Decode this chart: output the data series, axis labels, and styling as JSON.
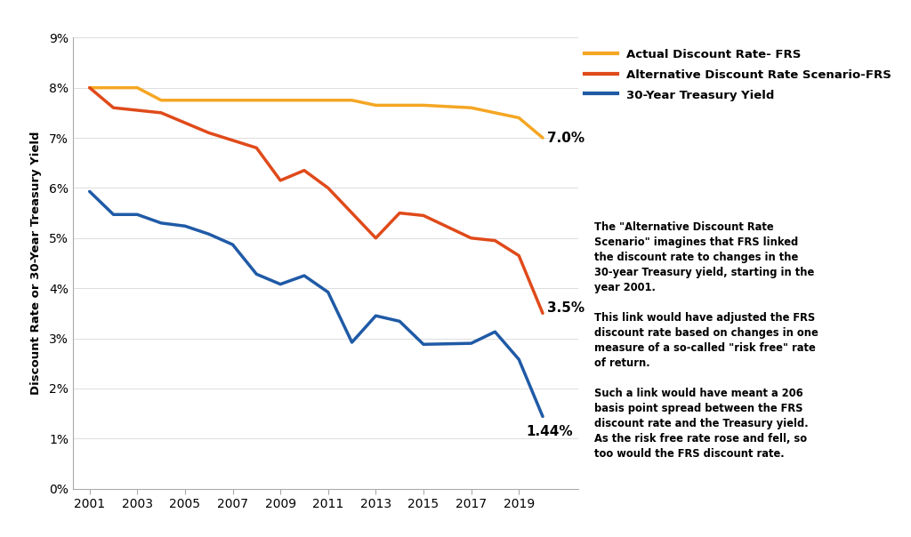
{
  "years": [
    2001,
    2002,
    2003,
    2004,
    2005,
    2006,
    2007,
    2008,
    2009,
    2010,
    2011,
    2012,
    2013,
    2014,
    2015,
    2017,
    2018,
    2019,
    2020
  ],
  "actual_discount_rate": [
    8.0,
    8.0,
    8.0,
    7.75,
    7.75,
    7.75,
    7.75,
    7.75,
    7.75,
    7.75,
    7.75,
    7.75,
    7.65,
    7.65,
    7.65,
    7.6,
    7.5,
    7.4,
    7.0
  ],
  "alt_discount_rate": [
    8.0,
    7.6,
    7.55,
    7.5,
    7.3,
    7.1,
    6.95,
    6.8,
    6.15,
    6.35,
    6.0,
    5.5,
    5.0,
    5.5,
    5.45,
    5.0,
    4.95,
    4.65,
    3.5
  ],
  "treasury_yield": [
    5.93,
    5.47,
    5.47,
    5.3,
    5.24,
    5.08,
    4.87,
    4.28,
    4.08,
    4.25,
    3.92,
    2.92,
    3.45,
    3.34,
    2.88,
    2.9,
    3.13,
    2.58,
    1.44
  ],
  "line_colors": {
    "actual": "#F5A623",
    "alt": "#E04A1A",
    "treasury": "#1F5AA6"
  },
  "ylabel": "Discount Rate or 30-Year Treasury Yield",
  "ytick_labels": [
    "0%",
    "1%",
    "2%",
    "3%",
    "4%",
    "5%",
    "6%",
    "7%",
    "8%",
    "9%"
  ],
  "xticks": [
    2001,
    2003,
    2005,
    2007,
    2009,
    2011,
    2013,
    2015,
    2017,
    2019
  ],
  "legend_labels": [
    "Actual Discount Rate- FRS",
    "Alternative Discount Rate Scenario-FRS",
    "30-Year Treasury Yield"
  ],
  "textbox_para1": "The \"Alternative Discount Rate\nScenario\" imagines that FRS linked\nthe discount rate to changes in the\n30-year Treasury yield, starting in the\nyear 2001.",
  "textbox_para2": "This link would have adjusted the FRS\ndiscount rate based on changes in one\nmeasure of a so-called \"risk free\" rate\nof return.",
  "textbox_para3": "Such a link would have meant a 206\nbasis point spread between the FRS\ndiscount rate and the Treasury yield.\nAs the risk free rate rose and fell, so\ntoo would the FRS discount rate.",
  "textbox_bg": "#C8C8C8",
  "background_color": "#FFFFFF",
  "line_width": 2.5
}
